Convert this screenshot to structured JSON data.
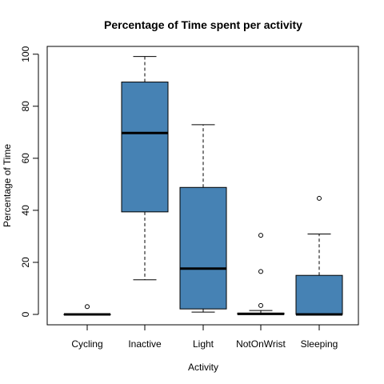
{
  "chart_data": {
    "type": "boxplot",
    "title": "Percentage of Time spent per activity",
    "xlabel": "Activity",
    "ylabel": "Percentage of Time",
    "ylim": [
      -4,
      103
    ],
    "yticks": [
      0,
      20,
      40,
      60,
      80,
      100
    ],
    "ytick_labels": [
      "0",
      "20",
      "40",
      "60",
      "80",
      "100"
    ],
    "box_color": "#4682B4",
    "grid": false,
    "categories": [
      "Cycling",
      "Inactive",
      "Light",
      "NotOnWrist",
      "Sleeping"
    ],
    "boxes": [
      {
        "label": "Cycling",
        "whisker_low": 0,
        "q1": 0,
        "median": 0,
        "q3": 0,
        "whisker_high": 0,
        "outliers": [
          3
        ]
      },
      {
        "label": "Inactive",
        "whisker_low": 13.3,
        "q1": 39.4,
        "median": 69.7,
        "q3": 89.3,
        "whisker_high": 99.1,
        "outliers": []
      },
      {
        "label": "Light",
        "whisker_low": 0.9,
        "q1": 2.1,
        "median": 17.6,
        "q3": 48.8,
        "whisker_high": 72.9,
        "outliers": []
      },
      {
        "label": "NotOnWrist",
        "whisker_low": 0,
        "q1": 0,
        "median": 0.2,
        "q3": 0.5,
        "whisker_high": 1.5,
        "outliers": [
          3.4,
          16.5,
          30.4
        ]
      },
      {
        "label": "Sleeping",
        "whisker_low": 0,
        "q1": 0,
        "median": 0,
        "q3": 15.0,
        "whisker_high": 30.9,
        "outliers": [
          44.6
        ]
      }
    ]
  }
}
